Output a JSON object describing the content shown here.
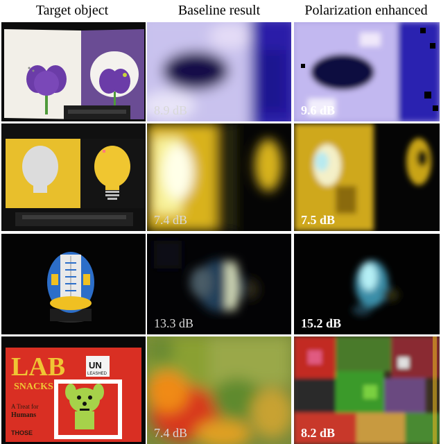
{
  "headers": {
    "target": "Target object",
    "baseline": "Baseline result",
    "polarization": "Polarization enhanced"
  },
  "rows": [
    {
      "baseline_db": "8.9 dB",
      "polarization_db": "9.6 dB"
    },
    {
      "baseline_db": "7.4 dB",
      "polarization_db": "7.5 dB"
    },
    {
      "baseline_db": "13.3 dB",
      "polarization_db": "15.2 dB"
    },
    {
      "baseline_db": "7.4 dB",
      "polarization_db": "8.2 dB"
    }
  ],
  "photo_text": {
    "lab": "LAB",
    "snacks": "SNACKS",
    "un": "UN",
    "leashed": "LEASHED",
    "treat_line1": "A Treat for",
    "treat_line2": "Humans",
    "those": "THOSE"
  },
  "colors": {
    "background": "#ffffff",
    "label_text": "#d8d8d8",
    "label_text_bold": "#ffffff"
  }
}
